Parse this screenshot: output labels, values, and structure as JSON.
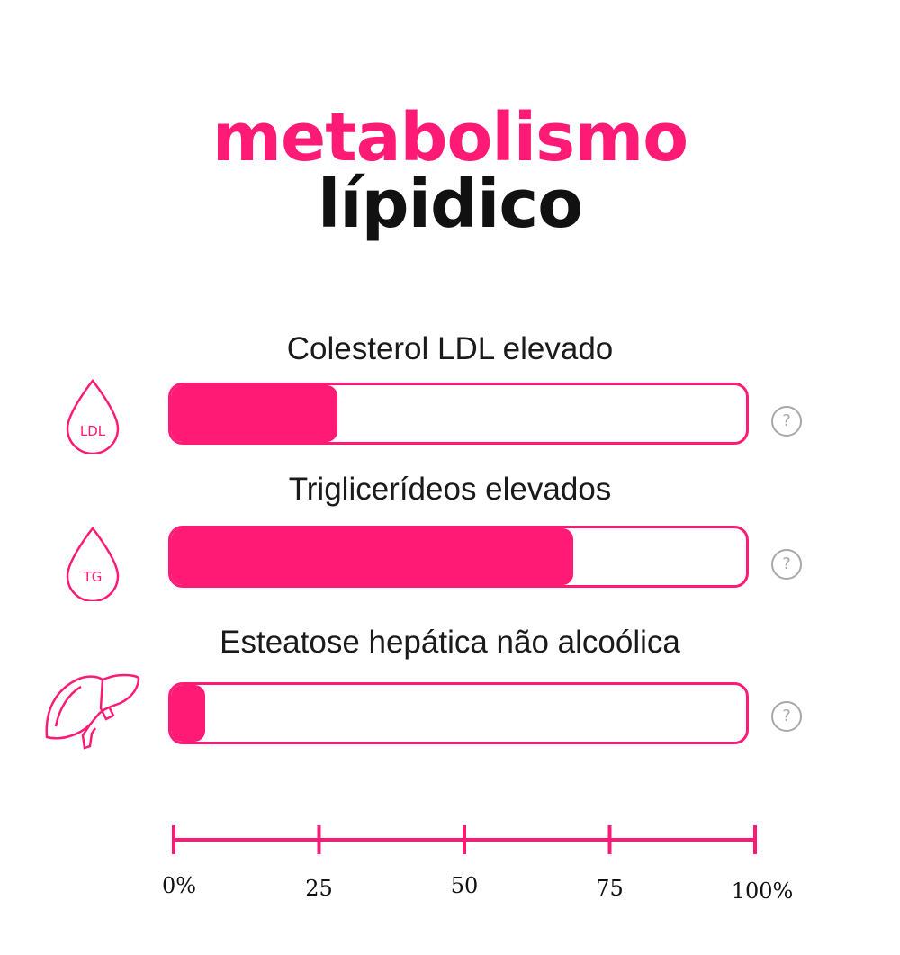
{
  "title": {
    "line1": "metabolismo",
    "line2": "lípidico"
  },
  "colors": {
    "accent": "#ff1a75",
    "help": "#a8a8a8"
  },
  "rows": [
    {
      "label": "Colesterol LDL elevado",
      "icon": "ldl-drop-icon",
      "icon_text": "LDL",
      "value": 29,
      "help_icon": "help-icon",
      "help_text": "?"
    },
    {
      "label": "Triglicerídeos elevados",
      "icon": "tg-drop-icon",
      "icon_text": "TG",
      "value": 70,
      "help_icon": "help-icon",
      "help_text": "?"
    },
    {
      "label": "Esteatose hepática não alcoólica",
      "icon": "liver-icon",
      "value": 6,
      "help_icon": "help-icon",
      "help_text": "?"
    }
  ],
  "chart_data": {
    "type": "bar",
    "orientation": "horizontal",
    "categories": [
      "Colesterol LDL elevado",
      "Triglicerídeos elevados",
      "Esteatose hepática não alcoólica"
    ],
    "values": [
      29,
      70,
      6
    ],
    "xlim": [
      0,
      100
    ],
    "tick_labels": [
      "0%",
      "25",
      "50",
      "75",
      "100%"
    ],
    "tick_values": [
      0,
      25,
      50,
      75,
      100
    ],
    "title": "metabolismo lípidico",
    "grid": false
  }
}
